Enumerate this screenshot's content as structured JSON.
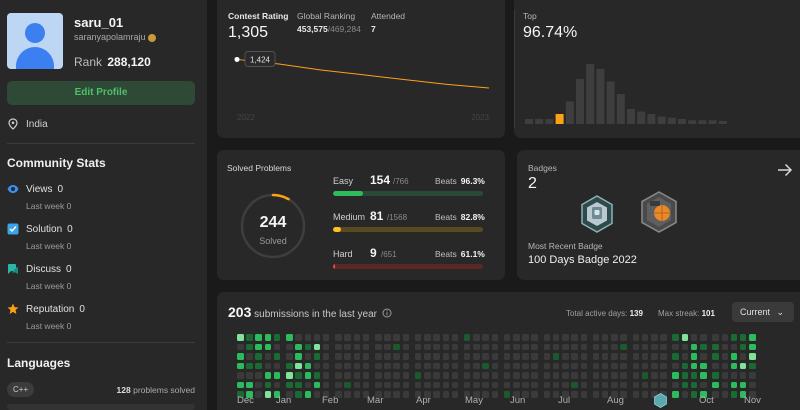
{
  "profile": {
    "username": "saru_01",
    "handle": "saranyapolamraju",
    "rank_label": "Rank",
    "rank_value": "288,120",
    "edit_button": "Edit Profile",
    "location": "India"
  },
  "community": {
    "title": "Community Stats",
    "items": [
      {
        "label": "Views",
        "value": "0",
        "sub": "Last week 0",
        "icon": "eye-icon"
      },
      {
        "label": "Solution",
        "value": "0",
        "sub": "Last week 0",
        "icon": "checkbox-icon"
      },
      {
        "label": "Discuss",
        "value": "0",
        "sub": "Last week 0",
        "icon": "discuss-icon"
      },
      {
        "label": "Reputation",
        "value": "0",
        "sub": "Last week 0",
        "icon": "star-icon"
      }
    ]
  },
  "languages": {
    "title": "Languages",
    "items": [
      {
        "name": "C++",
        "count": "128",
        "suffix": "problems solved"
      }
    ]
  },
  "contest": {
    "rating_label": "Contest Rating",
    "rating": "1,305",
    "global_label": "Global Ranking",
    "global_value": "453,575",
    "global_total": "/469,284",
    "attended_label": "Attended",
    "attended": "7",
    "tooltip": "1,424",
    "x_start": "2022",
    "x_end": "2023",
    "top_label": "Top",
    "top_value": "96.74%",
    "line": [
      1424,
      1405,
      1380,
      1360,
      1340,
      1320,
      1305
    ],
    "histogram": [
      4,
      4,
      4,
      8,
      18,
      36,
      48,
      44,
      34,
      24,
      12,
      10,
      8,
      6,
      5,
      4,
      3,
      3,
      3,
      2
    ],
    "hist_highlight_index": 3
  },
  "solved": {
    "title": "Solved Problems",
    "total": "244",
    "total_label": "Solved",
    "total_fraction": 0.083,
    "rows": [
      {
        "label": "Easy",
        "solved": "154",
        "total": "/766",
        "beats_label": "Beats",
        "beats": "96.3%",
        "fraction": 0.201,
        "color": "#2cbb5d",
        "track": "#2a4a35"
      },
      {
        "label": "Medium",
        "solved": "81",
        "total": "/1568",
        "beats_label": "Beats",
        "beats": "82.8%",
        "fraction": 0.052,
        "color": "#ffc01e",
        "track": "#5a4a20"
      },
      {
        "label": "Hard",
        "solved": "9",
        "total": "/651",
        "beats_label": "Beats",
        "beats": "61.1%",
        "fraction": 0.014,
        "color": "#ef4743",
        "track": "#5a2626"
      }
    ]
  },
  "badges": {
    "title": "Badges",
    "count": "2",
    "recent_label": "Most Recent Badge",
    "recent_name": "100 Days Badge 2022"
  },
  "submissions": {
    "count": "203",
    "label": "submissions in the last year",
    "active_label": "Total active days:",
    "active_value": "139",
    "streak_label": "Max streak:",
    "streak_value": "101",
    "dropdown": "Current",
    "months": [
      "Dec",
      "Jan",
      "Feb",
      "Mar",
      "Apr",
      "May",
      "Jun",
      "Jul",
      "Aug",
      "Sep",
      "Oct",
      "Nov"
    ]
  },
  "colors": {
    "green": "#2cbb5d",
    "yellow": "#ffc01e",
    "red": "#ef4743",
    "orange": "#ffa116"
  }
}
